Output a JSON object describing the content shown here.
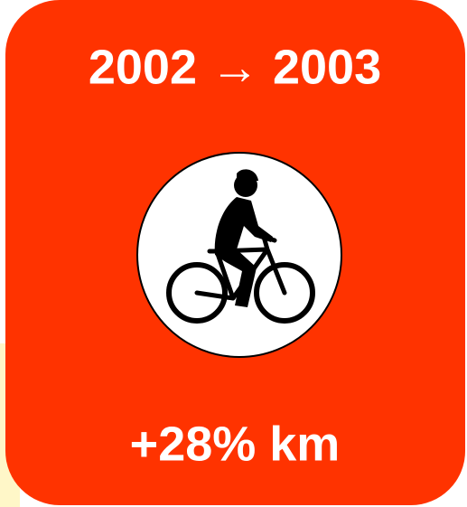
{
  "header": {
    "title": "2002 → 2003"
  },
  "footer": {
    "text": "+28% km"
  }
}
